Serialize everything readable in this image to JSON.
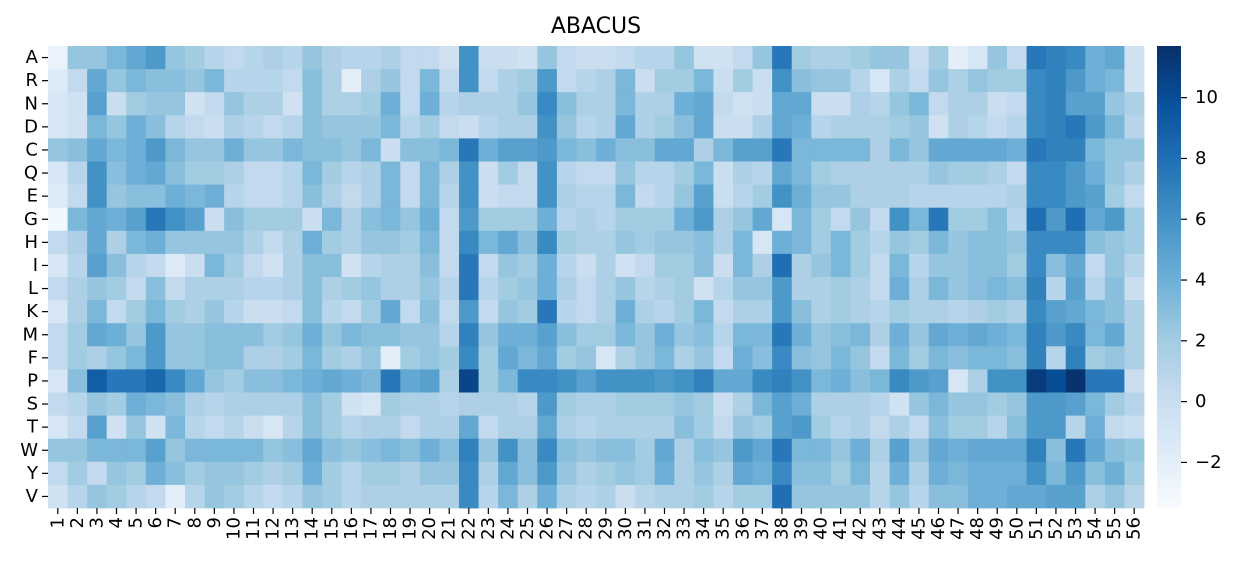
{
  "chart_data": {
    "type": "heatmap",
    "title": "ABACUS",
    "colormap": "Blues",
    "rows": [
      "A",
      "R",
      "N",
      "D",
      "C",
      "Q",
      "E",
      "G",
      "H",
      "I",
      "L",
      "K",
      "M",
      "F",
      "P",
      "S",
      "T",
      "W",
      "Y",
      "V"
    ],
    "columns": [
      "1",
      "2",
      "3",
      "4",
      "5",
      "6",
      "7",
      "8",
      "9",
      "10",
      "11",
      "12",
      "13",
      "14",
      "15",
      "16",
      "17",
      "18",
      "19",
      "20",
      "21",
      "22",
      "23",
      "24",
      "25",
      "26",
      "27",
      "28",
      "29",
      "30",
      "31",
      "32",
      "33",
      "34",
      "35",
      "36",
      "37",
      "38",
      "39",
      "40",
      "41",
      "42",
      "43",
      "44",
      "45",
      "46",
      "47",
      "48",
      "49",
      "50",
      "51",
      "52",
      "53",
      "54",
      "55",
      "56"
    ],
    "values": [
      [
        -2.5,
        2.5,
        2.5,
        3.5,
        4.5,
        5.5,
        2.5,
        2.0,
        1.0,
        0.5,
        1.0,
        1.5,
        1.0,
        2.5,
        1.5,
        1.0,
        1.0,
        1.5,
        0.5,
        0.5,
        -0.5,
        6.0,
        0.0,
        0.0,
        -0.5,
        2.5,
        0.5,
        0.0,
        0.0,
        0.5,
        1.0,
        1.0,
        2.5,
        -0.5,
        -0.5,
        0.5,
        2.5,
        7.5,
        2.0,
        1.5,
        1.5,
        2.0,
        2.5,
        2.5,
        0.0,
        2.0,
        -2.0,
        -1.0,
        2.5,
        0.5,
        7.5,
        7.0,
        6.5,
        4.0,
        4.5,
        -0.5
      ],
      [
        -1.5,
        0.5,
        4.5,
        2.5,
        3.5,
        3.0,
        3.0,
        2.5,
        3.5,
        1.0,
        1.0,
        1.0,
        0.5,
        3.0,
        1.5,
        -2.0,
        1.5,
        2.5,
        0.5,
        3.5,
        0.5,
        6.0,
        0.5,
        1.5,
        2.0,
        5.5,
        0.5,
        1.0,
        1.5,
        3.5,
        0.0,
        2.0,
        2.0,
        3.5,
        0.0,
        2.0,
        0.0,
        6.0,
        3.0,
        2.5,
        2.5,
        1.0,
        -1.0,
        1.5,
        0.5,
        2.5,
        1.5,
        2.5,
        2.0,
        2.0,
        6.5,
        7.0,
        5.5,
        4.0,
        3.5,
        -0.5
      ],
      [
        -1.0,
        -0.5,
        5.0,
        0.0,
        2.0,
        2.5,
        2.5,
        -0.5,
        0.5,
        2.5,
        1.5,
        1.5,
        -0.5,
        3.0,
        1.5,
        1.5,
        2.0,
        4.0,
        0.5,
        4.0,
        1.0,
        1.5,
        1.5,
        1.5,
        2.5,
        6.5,
        3.0,
        1.5,
        1.5,
        3.5,
        1.5,
        1.5,
        4.0,
        4.5,
        0.5,
        -0.5,
        0.0,
        4.5,
        4.5,
        0.0,
        0.0,
        1.5,
        1.0,
        2.5,
        3.5,
        0.5,
        1.5,
        1.5,
        0.0,
        0.5,
        6.5,
        7.0,
        5.0,
        5.0,
        2.5,
        1.5
      ],
      [
        -1.0,
        -0.5,
        3.5,
        2.5,
        4.0,
        3.0,
        1.0,
        0.5,
        0.0,
        1.5,
        1.0,
        0.5,
        1.0,
        3.0,
        2.5,
        2.5,
        2.5,
        3.5,
        1.0,
        2.0,
        0.5,
        0.0,
        1.0,
        1.5,
        1.5,
        6.0,
        2.5,
        1.0,
        1.5,
        4.5,
        1.5,
        2.0,
        3.0,
        4.5,
        0.0,
        0.0,
        1.5,
        4.5,
        4.0,
        1.0,
        1.5,
        1.5,
        1.5,
        2.0,
        2.5,
        -0.5,
        1.5,
        1.0,
        0.5,
        1.0,
        6.5,
        7.0,
        7.5,
        5.5,
        3.5,
        1.0
      ],
      [
        2.5,
        3.0,
        4.5,
        3.5,
        4.0,
        5.5,
        3.5,
        2.5,
        2.5,
        4.0,
        2.5,
        2.5,
        3.5,
        3.0,
        3.0,
        2.5,
        3.5,
        0.0,
        3.0,
        3.0,
        3.5,
        7.5,
        4.0,
        5.0,
        5.0,
        5.5,
        3.5,
        3.0,
        4.0,
        3.0,
        3.0,
        4.5,
        4.5,
        1.5,
        3.5,
        5.0,
        5.0,
        7.5,
        3.5,
        3.5,
        3.5,
        3.5,
        1.5,
        3.5,
        2.5,
        4.5,
        4.5,
        4.5,
        4.5,
        4.0,
        7.5,
        7.0,
        7.0,
        3.5,
        2.5,
        2.5
      ],
      [
        -1.0,
        1.0,
        6.0,
        3.0,
        4.0,
        4.5,
        3.0,
        2.0,
        2.0,
        1.5,
        0.5,
        0.5,
        1.0,
        3.5,
        2.0,
        1.0,
        1.5,
        3.5,
        0.5,
        3.5,
        1.5,
        6.0,
        0.0,
        2.0,
        0.5,
        6.0,
        1.0,
        0.5,
        0.5,
        2.5,
        1.0,
        1.0,
        2.0,
        3.5,
        0.0,
        1.5,
        1.0,
        4.5,
        3.5,
        2.0,
        1.5,
        1.5,
        1.5,
        1.5,
        1.5,
        2.5,
        2.0,
        2.0,
        1.5,
        0.5,
        6.5,
        6.5,
        5.5,
        4.0,
        2.5,
        1.5
      ],
      [
        -1.5,
        0.5,
        6.0,
        2.5,
        3.0,
        3.0,
        4.0,
        3.5,
        4.0,
        1.0,
        0.5,
        0.5,
        1.0,
        3.0,
        1.5,
        0.5,
        1.5,
        3.5,
        0.5,
        3.5,
        1.0,
        6.0,
        0.0,
        0.5,
        0.5,
        6.0,
        1.5,
        1.0,
        1.0,
        3.5,
        0.5,
        1.0,
        2.5,
        5.0,
        0.0,
        1.0,
        2.0,
        6.0,
        4.0,
        2.5,
        2.5,
        1.5,
        1.5,
        1.5,
        1.0,
        1.0,
        1.0,
        1.0,
        1.0,
        1.5,
        6.5,
        6.5,
        5.5,
        5.0,
        2.0,
        0.5
      ],
      [
        -3.0,
        3.5,
        4.5,
        4.0,
        5.0,
        7.5,
        6.0,
        5.0,
        0.0,
        3.0,
        2.0,
        2.0,
        2.0,
        0.0,
        3.5,
        1.5,
        3.0,
        3.5,
        2.5,
        4.0,
        0.5,
        5.5,
        2.0,
        2.0,
        2.0,
        4.0,
        1.0,
        1.5,
        1.0,
        2.0,
        2.0,
        2.0,
        4.0,
        5.5,
        1.5,
        2.5,
        4.5,
        -1.0,
        3.5,
        2.0,
        0.5,
        2.5,
        0.5,
        6.0,
        3.5,
        7.5,
        2.0,
        2.0,
        3.0,
        1.0,
        8.0,
        5.5,
        8.0,
        4.5,
        5.5,
        2.0
      ],
      [
        0.5,
        1.5,
        4.5,
        1.5,
        3.5,
        4.0,
        2.5,
        2.5,
        2.5,
        2.5,
        1.5,
        0.5,
        1.5,
        4.0,
        2.0,
        1.5,
        2.5,
        2.5,
        2.0,
        3.5,
        0.5,
        6.5,
        3.5,
        4.5,
        3.0,
        6.5,
        2.0,
        1.5,
        1.5,
        2.5,
        2.0,
        2.5,
        2.5,
        3.0,
        1.5,
        3.5,
        -1.0,
        4.0,
        3.5,
        2.0,
        3.5,
        2.0,
        1.0,
        2.5,
        2.0,
        3.5,
        2.5,
        3.0,
        3.0,
        2.5,
        6.5,
        6.5,
        6.5,
        3.0,
        2.5,
        2.0
      ],
      [
        -1.0,
        1.0,
        5.0,
        3.0,
        1.0,
        0.5,
        -1.5,
        0.0,
        3.5,
        2.0,
        0.5,
        -0.5,
        1.5,
        3.0,
        3.0,
        -0.5,
        1.0,
        1.5,
        1.5,
        3.0,
        0.5,
        7.5,
        0.5,
        2.5,
        2.0,
        4.0,
        1.0,
        0.0,
        1.5,
        -0.5,
        0.5,
        2.0,
        2.0,
        3.0,
        0.0,
        3.5,
        1.5,
        8.0,
        1.5,
        2.5,
        3.5,
        2.0,
        0.5,
        3.5,
        1.0,
        2.5,
        2.5,
        3.0,
        3.0,
        2.0,
        6.5,
        3.0,
        4.5,
        0.5,
        2.5,
        1.0
      ],
      [
        0.5,
        1.5,
        2.5,
        2.0,
        0.5,
        3.0,
        0.5,
        1.5,
        1.5,
        1.5,
        1.0,
        1.0,
        1.5,
        3.0,
        1.5,
        2.0,
        2.5,
        1.5,
        1.5,
        2.5,
        1.0,
        7.5,
        1.0,
        2.0,
        2.5,
        4.0,
        1.5,
        0.5,
        1.5,
        2.5,
        1.0,
        1.5,
        2.0,
        -0.5,
        1.0,
        2.5,
        2.5,
        5.5,
        1.5,
        1.5,
        2.0,
        1.5,
        0.5,
        4.0,
        1.5,
        3.5,
        2.5,
        3.0,
        3.5,
        3.0,
        7.0,
        1.0,
        5.0,
        1.0,
        3.0,
        0.0
      ],
      [
        -1.0,
        1.5,
        3.5,
        0.5,
        2.0,
        3.5,
        2.0,
        1.5,
        2.5,
        1.0,
        0.0,
        0.0,
        0.5,
        3.0,
        1.0,
        0.5,
        2.0,
        4.5,
        0.5,
        3.0,
        0.5,
        5.5,
        0.5,
        2.5,
        2.0,
        7.5,
        1.0,
        0.5,
        1.5,
        4.0,
        1.5,
        1.0,
        2.0,
        3.5,
        0.5,
        1.5,
        1.5,
        5.5,
        3.0,
        1.5,
        2.0,
        1.5,
        1.0,
        2.0,
        1.5,
        1.5,
        1.0,
        1.5,
        2.0,
        1.5,
        6.5,
        5.0,
        4.5,
        3.5,
        3.0,
        1.5
      ],
      [
        0.5,
        2.0,
        4.5,
        4.0,
        2.5,
        5.5,
        2.5,
        2.5,
        3.0,
        3.0,
        3.0,
        2.0,
        2.5,
        4.0,
        2.5,
        3.5,
        3.0,
        3.0,
        2.5,
        2.5,
        1.0,
        7.0,
        2.5,
        4.0,
        4.0,
        5.0,
        3.0,
        2.0,
        2.0,
        3.5,
        2.5,
        4.0,
        2.5,
        3.0,
        1.0,
        3.5,
        3.5,
        7.5,
        4.0,
        2.5,
        3.0,
        3.5,
        1.5,
        4.0,
        2.5,
        4.5,
        4.0,
        4.5,
        4.0,
        3.5,
        7.0,
        5.5,
        6.5,
        3.5,
        4.5,
        1.5
      ],
      [
        0.5,
        2.0,
        1.5,
        2.5,
        3.5,
        5.5,
        2.5,
        2.5,
        3.0,
        3.0,
        1.5,
        1.5,
        2.0,
        3.5,
        2.0,
        1.5,
        2.5,
        -2.0,
        2.0,
        2.5,
        2.0,
        6.5,
        2.0,
        4.5,
        3.5,
        4.5,
        2.0,
        2.5,
        -1.0,
        1.5,
        2.5,
        3.5,
        1.5,
        2.5,
        0.5,
        4.0,
        3.0,
        6.5,
        3.0,
        2.5,
        3.5,
        2.5,
        0.5,
        3.5,
        2.0,
        3.5,
        3.0,
        3.5,
        3.5,
        3.0,
        7.0,
        1.0,
        7.0,
        2.0,
        2.5,
        1.5
      ],
      [
        -1.0,
        3.0,
        9.0,
        7.5,
        7.5,
        8.5,
        6.5,
        4.5,
        2.5,
        2.0,
        3.0,
        3.0,
        3.5,
        4.0,
        4.5,
        4.0,
        3.5,
        7.5,
        4.5,
        5.0,
        1.5,
        10.5,
        2.0,
        3.5,
        6.5,
        6.5,
        6.0,
        5.0,
        6.0,
        6.0,
        6.0,
        5.5,
        6.0,
        7.0,
        4.5,
        4.5,
        6.5,
        7.0,
        6.0,
        3.5,
        4.0,
        3.0,
        3.5,
        6.5,
        5.5,
        5.0,
        -1.0,
        1.5,
        6.0,
        6.0,
        11.0,
        10.0,
        11.5,
        7.5,
        7.5,
        0.0
      ],
      [
        0.5,
        1.0,
        2.5,
        2.0,
        4.0,
        3.5,
        3.0,
        1.5,
        1.0,
        1.5,
        1.5,
        1.5,
        1.5,
        3.0,
        2.0,
        -0.5,
        -1.0,
        2.0,
        1.5,
        1.5,
        1.0,
        1.5,
        1.5,
        1.5,
        1.0,
        5.5,
        2.0,
        1.5,
        1.5,
        2.0,
        2.0,
        2.0,
        2.5,
        2.0,
        0.0,
        1.5,
        3.5,
        5.0,
        4.0,
        1.5,
        1.5,
        1.5,
        1.0,
        -0.5,
        2.5,
        3.5,
        2.5,
        2.5,
        2.0,
        2.5,
        5.5,
        5.5,
        5.0,
        3.5,
        2.0,
        1.0
      ],
      [
        -1.0,
        0.5,
        5.0,
        -0.5,
        2.5,
        -0.5,
        3.5,
        1.0,
        0.5,
        1.0,
        0.0,
        -1.0,
        1.0,
        3.0,
        2.0,
        1.0,
        1.5,
        1.5,
        0.5,
        1.5,
        1.5,
        4.5,
        0.5,
        1.5,
        1.5,
        4.5,
        1.5,
        1.0,
        1.5,
        1.5,
        1.5,
        1.5,
        3.0,
        2.0,
        0.5,
        2.5,
        2.0,
        5.0,
        5.5,
        2.0,
        1.0,
        1.5,
        0.5,
        1.5,
        0.5,
        3.0,
        2.0,
        2.0,
        1.0,
        3.0,
        5.5,
        5.5,
        1.0,
        4.0,
        0.5,
        0.0
      ],
      [
        2.5,
        2.5,
        3.5,
        3.5,
        3.5,
        5.0,
        2.5,
        3.5,
        3.5,
        3.5,
        3.5,
        2.5,
        3.0,
        4.5,
        3.0,
        2.5,
        3.0,
        3.5,
        3.0,
        4.0,
        3.0,
        7.0,
        2.5,
        6.0,
        3.0,
        6.5,
        3.0,
        2.5,
        3.0,
        3.0,
        2.0,
        4.5,
        1.5,
        3.0,
        2.5,
        5.5,
        4.5,
        7.5,
        3.5,
        3.5,
        2.5,
        4.0,
        1.5,
        5.0,
        2.5,
        4.5,
        4.0,
        4.5,
        4.5,
        4.5,
        7.0,
        3.0,
        7.5,
        4.5,
        3.0,
        2.5
      ],
      [
        0.5,
        2.0,
        0.5,
        2.5,
        2.0,
        4.0,
        3.0,
        2.0,
        2.5,
        2.5,
        2.0,
        1.5,
        2.0,
        4.0,
        2.0,
        1.0,
        2.0,
        2.0,
        1.5,
        2.5,
        2.5,
        6.5,
        1.5,
        4.5,
        3.0,
        5.5,
        2.5,
        1.5,
        2.0,
        2.5,
        2.0,
        4.0,
        1.5,
        2.5,
        1.5,
        4.5,
        4.0,
        6.5,
        3.0,
        3.0,
        2.0,
        3.5,
        1.0,
        4.0,
        1.5,
        4.0,
        3.5,
        4.0,
        4.0,
        4.0,
        6.0,
        3.5,
        5.5,
        3.0,
        4.0,
        2.0
      ],
      [
        -0.5,
        1.0,
        2.5,
        2.0,
        1.0,
        0.5,
        -2.0,
        1.0,
        2.5,
        2.0,
        1.0,
        0.5,
        1.0,
        2.5,
        2.0,
        1.0,
        1.5,
        1.5,
        1.5,
        1.5,
        1.5,
        6.5,
        1.0,
        3.5,
        1.5,
        4.0,
        1.5,
        1.0,
        1.5,
        0.0,
        1.0,
        1.5,
        1.5,
        2.0,
        1.0,
        2.0,
        2.0,
        8.0,
        2.5,
        2.5,
        2.5,
        2.5,
        1.0,
        2.5,
        1.0,
        3.0,
        3.0,
        4.0,
        4.0,
        4.5,
        4.5,
        5.0,
        5.0,
        1.5,
        2.5,
        1.0
      ]
    ],
    "vmin": -3.5,
    "vmax": 11.7,
    "colorbar_ticks": [
      -2,
      0,
      2,
      4,
      6,
      8,
      10
    ],
    "colorbar_tick_labels": [
      "−2",
      "0",
      "2",
      "4",
      "6",
      "8",
      "10"
    ]
  }
}
